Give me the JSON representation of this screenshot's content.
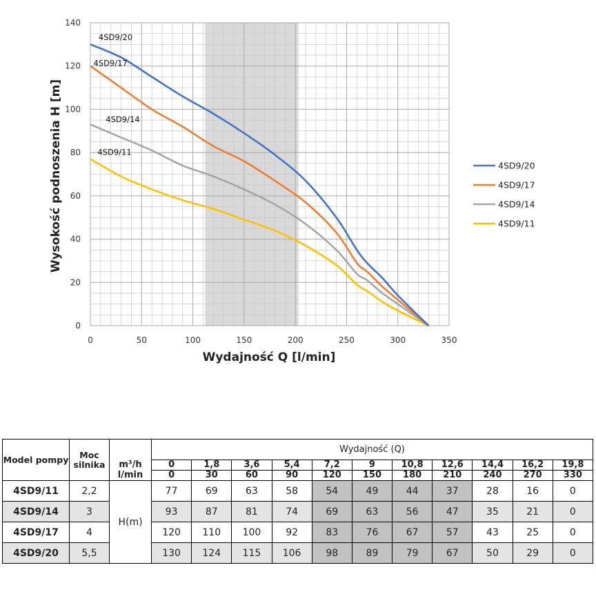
{
  "chart_data": {
    "type": "line",
    "xlabel": "Wydajność Q [l/min]",
    "ylabel": "Wysokość podnoszenia H [m]",
    "xlim": [
      0,
      350
    ],
    "ylim": [
      0,
      140
    ],
    "xticks": [
      0,
      50,
      100,
      150,
      200,
      250,
      300,
      350
    ],
    "yticks": [
      0,
      20,
      40,
      60,
      80,
      100,
      120,
      140
    ],
    "grid": true,
    "highlight_band": [
      112,
      203
    ],
    "legend_position": "right",
    "series": [
      {
        "name": "4SD9/20",
        "color": "#4472C4",
        "x": [
          0,
          30,
          60,
          90,
          120,
          150,
          180,
          210,
          240,
          260,
          270,
          285,
          300,
          330
        ],
        "y": [
          130,
          124,
          115,
          106,
          98,
          89,
          79,
          67,
          50,
          35,
          29,
          22,
          14,
          0
        ]
      },
      {
        "name": "4SD9/17",
        "color": "#ED7D31",
        "x": [
          0,
          30,
          60,
          90,
          120,
          150,
          180,
          210,
          240,
          260,
          270,
          285,
          300,
          330
        ],
        "y": [
          120,
          110,
          100,
          92,
          83,
          76,
          67,
          57,
          43,
          29,
          25,
          18,
          12,
          0
        ]
      },
      {
        "name": "4SD9/14",
        "color": "#A5A5A5",
        "x": [
          0,
          30,
          60,
          90,
          120,
          150,
          180,
          210,
          240,
          260,
          270,
          285,
          300,
          330
        ],
        "y": [
          93,
          87,
          81,
          74,
          69,
          63,
          56,
          47,
          35,
          24,
          21,
          15,
          10,
          0
        ]
      },
      {
        "name": "4SD9/11",
        "color": "#FFC000",
        "x": [
          0,
          30,
          60,
          90,
          120,
          150,
          180,
          210,
          240,
          260,
          270,
          285,
          300,
          330
        ],
        "y": [
          77,
          69,
          63,
          58,
          54,
          49,
          44,
          37,
          28,
          19,
          16,
          11,
          7,
          0
        ]
      }
    ],
    "curve_labels": [
      {
        "series": "4SD9/20",
        "x": 8,
        "y": 132
      },
      {
        "series": "4SD9/17",
        "x": 3,
        "y": 120
      },
      {
        "series": "4SD9/14",
        "x": 15,
        "y": 94
      },
      {
        "series": "4SD9/11",
        "x": 7,
        "y": 79
      }
    ]
  },
  "table": {
    "col_model": "Model pompy",
    "col_power": "Moc silnika",
    "unit_m3h": "m³/h",
    "unit_lmin": "l/min",
    "flow_title": "Wydajność (Q)",
    "h_label": "H(m)",
    "m3h": [
      "0",
      "1,8",
      "3,6",
      "5,4",
      "7,2",
      "9",
      "10,8",
      "12,6",
      "14,4",
      "16,2",
      "19,8"
    ],
    "lmin": [
      "0",
      "30",
      "60",
      "90",
      "120",
      "150",
      "180",
      "210",
      "240",
      "270",
      "330"
    ],
    "rows": [
      {
        "model": "4SD9/11",
        "power": "2,2",
        "values": [
          "77",
          "69",
          "63",
          "58",
          "54",
          "49",
          "44",
          "37",
          "28",
          "16",
          "0"
        ]
      },
      {
        "model": "4SD9/14",
        "power": "3",
        "values": [
          "93",
          "87",
          "81",
          "74",
          "69",
          "63",
          "56",
          "47",
          "35",
          "21",
          "0"
        ]
      },
      {
        "model": "4SD9/17",
        "power": "4",
        "values": [
          "120",
          "110",
          "100",
          "92",
          "83",
          "76",
          "67",
          "57",
          "43",
          "25",
          "0"
        ]
      },
      {
        "model": "4SD9/20",
        "power": "5,5",
        "values": [
          "130",
          "124",
          "115",
          "106",
          "98",
          "89",
          "79",
          "67",
          "50",
          "29",
          "0"
        ]
      }
    ],
    "highlight_columns": [
      "120",
      "150",
      "180",
      "210"
    ]
  }
}
